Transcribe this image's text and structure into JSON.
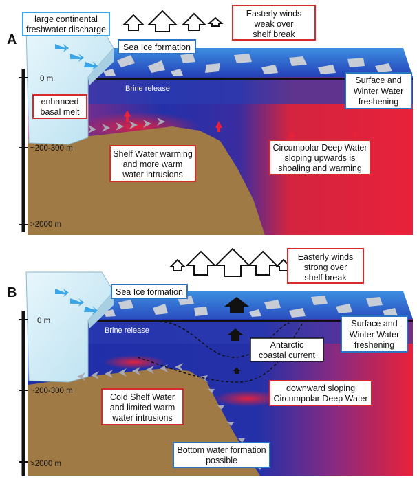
{
  "panels": {
    "a": {
      "letter": "A",
      "depths": [
        "0 m",
        "~200-300 m",
        ">2000 m"
      ],
      "labels": {
        "discharge": [
          "large continental",
          "freshwater discharge"
        ],
        "winds": [
          "Easterly winds",
          "weak over",
          "shelf break"
        ],
        "sea_ice": "Sea Ice formation",
        "brine": "Brine release",
        "surface": [
          "Surface and",
          "Winter Water",
          "freshening"
        ],
        "melt": [
          "enhanced",
          "basal melt"
        ],
        "shelf": [
          "Shelf Water warming",
          "and more warm",
          "water intrusions"
        ],
        "cdw": [
          "Circumpolar Deep Water",
          "sloping upwards is",
          "shoaling and warming"
        ]
      }
    },
    "b": {
      "letter": "B",
      "depths": [
        "0 m",
        "~200-300 m",
        ">2000 m"
      ],
      "labels": {
        "winds": [
          "Easterly winds",
          "strong over",
          "shelf break"
        ],
        "sea_ice": "Sea Ice formation",
        "brine": "Brine release",
        "surface": [
          "Surface and",
          "Winter Water",
          "freshening"
        ],
        "current": [
          "Antarctic",
          "coastal current"
        ],
        "cdw": [
          "downward sloping",
          "Circumpolar Deep Water"
        ],
        "shelf": [
          "Cold Shelf Water",
          "and limited warm",
          "water intrusions"
        ],
        "bottom": [
          "Bottom water formation",
          "possible"
        ]
      }
    }
  },
  "colors": {
    "cold_water": "#1f2fa8",
    "warm_water": "#e8213a",
    "land": "#a07a45",
    "ice": "#d4eef8",
    "red_box": "#d62b2b",
    "blue_box": "#2a74c6"
  }
}
